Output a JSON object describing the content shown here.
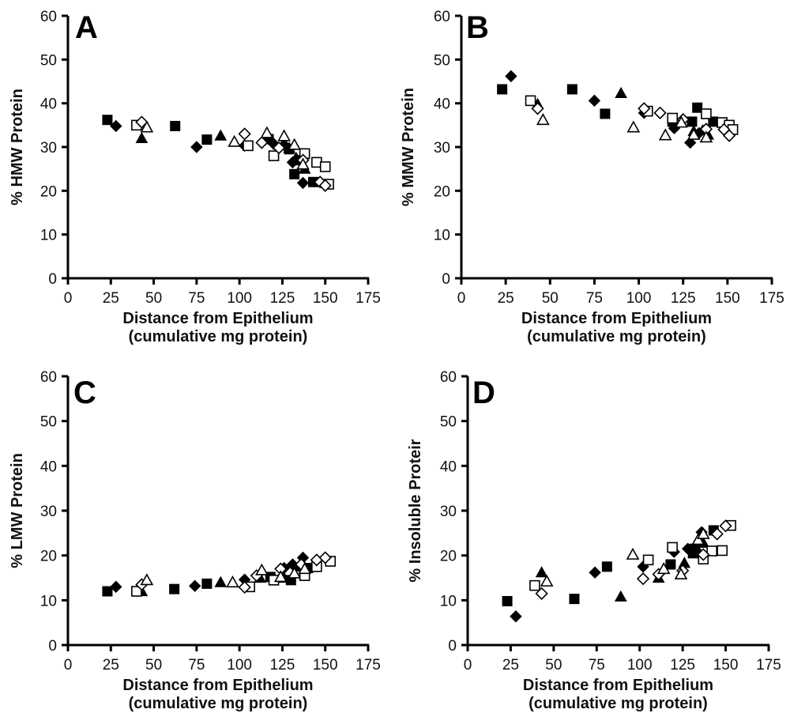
{
  "chart_data": [
    {
      "type": "scatter",
      "panel": "A",
      "title": "",
      "xlabel": "Distance from Epithelium",
      "xlabel_line2": "(cumulative mg protein)",
      "ylabel": "% HMW Protein",
      "xlim": [
        0,
        175
      ],
      "ylim": [
        0,
        60
      ],
      "xticks": [
        "0",
        "25",
        "50",
        "75",
        "100",
        "125",
        "150",
        "175"
      ],
      "yticks": [
        "0",
        "10",
        "20",
        "30",
        "40",
        "50",
        "60"
      ],
      "grid": false,
      "legend": "none",
      "series": [
        {
          "name": "filled-square",
          "marker": "square",
          "filled": true,
          "points": [
            [
              23,
              36.2
            ],
            [
              62.5,
              34.8
            ],
            [
              81,
              31.7
            ],
            [
              117,
              31.8
            ],
            [
              132,
              23.8
            ],
            [
              143,
              22.0
            ],
            [
              129,
              29.5
            ],
            [
              135,
              27.0
            ]
          ]
        },
        {
          "name": "filled-diamond",
          "marker": "diamond",
          "filled": true,
          "points": [
            [
              28,
              34.8
            ],
            [
              75,
              30.0
            ],
            [
              103,
              30.3
            ],
            [
              120,
              30.7
            ],
            [
              131,
              26.5
            ],
            [
              137,
              21.8
            ],
            [
              126,
              30.5
            ]
          ]
        },
        {
          "name": "filled-triangle",
          "marker": "triangle",
          "filled": true,
          "points": [
            [
              43,
              32.0
            ],
            [
              89,
              32.6
            ],
            [
              129,
              29.8
            ],
            [
              133,
              27.5
            ],
            [
              138,
              25.0
            ]
          ]
        },
        {
          "name": "open-square",
          "marker": "square",
          "filled": false,
          "points": [
            [
              40,
              35.0
            ],
            [
              105,
              30.3
            ],
            [
              120,
              28.0
            ],
            [
              138,
              28.5
            ],
            [
              145,
              26.5
            ],
            [
              150,
              25.5
            ],
            [
              152,
              21.5
            ]
          ]
        },
        {
          "name": "open-diamond",
          "marker": "diamond",
          "filled": false,
          "points": [
            [
              43,
              35.7
            ],
            [
              103,
              33.0
            ],
            [
              113,
              31.0
            ],
            [
              123,
              29.8
            ],
            [
              137,
              27.0
            ],
            [
              147,
              22.0
            ],
            [
              150,
              21.2
            ]
          ]
        },
        {
          "name": "open-triangle",
          "marker": "triangle",
          "filled": false,
          "points": [
            [
              46,
              34.5
            ],
            [
              97,
              31.2
            ],
            [
              116,
              33.2
            ],
            [
              126,
              32.5
            ],
            [
              132,
              30.5
            ],
            [
              137,
              26.0
            ]
          ]
        }
      ]
    },
    {
      "type": "scatter",
      "panel": "B",
      "title": "",
      "xlabel": "Distance from Epithelium",
      "xlabel_line2": "(cumulative mg protein)",
      "ylabel": "% MMW Protein",
      "xlim": [
        0,
        175
      ],
      "ylim": [
        0,
        60
      ],
      "xticks": [
        "0",
        "25",
        "50",
        "75",
        "100",
        "125",
        "150",
        "175"
      ],
      "yticks": [
        "0",
        "10",
        "20",
        "30",
        "40",
        "50",
        "60"
      ],
      "grid": false,
      "legend": "none",
      "series": [
        {
          "name": "filled-square",
          "marker": "square",
          "filled": true,
          "points": [
            [
              23,
              43.2
            ],
            [
              62.5,
              43.2
            ],
            [
              81,
              37.6
            ],
            [
              119,
              35.8
            ],
            [
              130,
              35.8
            ],
            [
              133,
              39.0
            ],
            [
              142,
              35.8
            ]
          ]
        },
        {
          "name": "filled-diamond",
          "marker": "diamond",
          "filled": true,
          "points": [
            [
              28,
              46.2
            ],
            [
              75,
              40.6
            ],
            [
              103,
              37.8
            ],
            [
              120,
              34.3
            ],
            [
              129,
              31.0
            ],
            [
              134,
              33.2
            ]
          ]
        },
        {
          "name": "filled-triangle",
          "marker": "triangle",
          "filled": true,
          "points": [
            [
              43,
              39.8
            ],
            [
              90,
              42.3
            ],
            [
              131,
              33.6
            ],
            [
              136,
              33.8
            ],
            [
              139,
              32.8
            ]
          ]
        },
        {
          "name": "open-square",
          "marker": "square",
          "filled": false,
          "points": [
            [
              39,
              40.6
            ],
            [
              105,
              38.2
            ],
            [
              119,
              36.6
            ],
            [
              138,
              37.6
            ],
            [
              147,
              35.6
            ],
            [
              151,
              35.0
            ],
            [
              153,
              34.0
            ]
          ]
        },
        {
          "name": "open-diamond",
          "marker": "diamond",
          "filled": false,
          "points": [
            [
              43,
              38.8
            ],
            [
              103,
              38.8
            ],
            [
              112,
              37.8
            ],
            [
              125,
              36.3
            ],
            [
              138,
              34.1
            ],
            [
              148,
              34.0
            ],
            [
              151,
              32.6
            ]
          ]
        },
        {
          "name": "open-triangle",
          "marker": "triangle",
          "filled": false,
          "points": [
            [
              46,
              36.2
            ],
            [
              97,
              34.5
            ],
            [
              115,
              32.7
            ],
            [
              124,
              35.6
            ],
            [
              131,
              32.8
            ],
            [
              138,
              32.2
            ]
          ]
        }
      ]
    },
    {
      "type": "scatter",
      "panel": "C",
      "title": "",
      "xlabel": "Distance from Epithelium",
      "xlabel_line2": "(cumulative mg protein)",
      "ylabel": "% LMW Protein",
      "xlim": [
        0,
        175
      ],
      "ylim": [
        0,
        60
      ],
      "xticks": [
        "0",
        "25",
        "50",
        "75",
        "100",
        "125",
        "150",
        "175"
      ],
      "yticks": [
        "0",
        "10",
        "20",
        "30",
        "40",
        "50",
        "60"
      ],
      "grid": false,
      "legend": "none",
      "series": [
        {
          "name": "filled-square",
          "marker": "square",
          "filled": true,
          "points": [
            [
              23,
              12.0
            ],
            [
              62,
              12.5
            ],
            [
              81,
              13.7
            ],
            [
              118,
              15.2
            ],
            [
              130,
              14.5
            ],
            [
              140,
              17.2
            ]
          ]
        },
        {
          "name": "filled-diamond",
          "marker": "diamond",
          "filled": true,
          "points": [
            [
              28,
              13.0
            ],
            [
              74,
              13.2
            ],
            [
              103,
              14.6
            ],
            [
              126,
              17.2
            ],
            [
              131,
              18.0
            ],
            [
              137,
              19.5
            ]
          ]
        },
        {
          "name": "filled-triangle",
          "marker": "triangle",
          "filled": true,
          "points": [
            [
              43,
              12.0
            ],
            [
              89,
              14.0
            ],
            [
              112,
              15.0
            ],
            [
              126,
              15.0
            ],
            [
              135,
              17.5
            ]
          ]
        },
        {
          "name": "open-square",
          "marker": "square",
          "filled": false,
          "points": [
            [
              40,
              12.0
            ],
            [
              106,
              13.0
            ],
            [
              120,
              14.5
            ],
            [
              138,
              15.5
            ],
            [
              145,
              17.5
            ],
            [
              153,
              18.7
            ]
          ]
        },
        {
          "name": "open-diamond",
          "marker": "diamond",
          "filled": false,
          "points": [
            [
              43,
              13.5
            ],
            [
              103,
              12.9
            ],
            [
              110,
              15.5
            ],
            [
              124,
              17.0
            ],
            [
              136,
              18.0
            ],
            [
              145,
              19.0
            ],
            [
              150,
              19.5
            ]
          ]
        },
        {
          "name": "open-triangle",
          "marker": "triangle",
          "filled": false,
          "points": [
            [
              46,
              14.5
            ],
            [
              96,
              14.0
            ],
            [
              113,
              16.7
            ],
            [
              124,
              15.2
            ],
            [
              132,
              16.0
            ],
            [
              138,
              17.0
            ]
          ]
        }
      ]
    },
    {
      "type": "scatter",
      "panel": "D",
      "title": "",
      "xlabel": "Distance from Epithelium",
      "xlabel_line2": "(cumulative mg protein)",
      "ylabel": "% Insoluble Proteir",
      "xlim": [
        0,
        175
      ],
      "ylim": [
        0,
        60
      ],
      "xticks": [
        "0",
        "25",
        "50",
        "75",
        "100",
        "125",
        "150",
        "175"
      ],
      "yticks": [
        "0",
        "10",
        "20",
        "30",
        "40",
        "50",
        "60"
      ],
      "grid": false,
      "legend": "none",
      "series": [
        {
          "name": "filled-square",
          "marker": "square",
          "filled": true,
          "points": [
            [
              23,
              9.8
            ],
            [
              62,
              10.3
            ],
            [
              81,
              17.5
            ],
            [
              118,
              18.0
            ],
            [
              132,
              21.5
            ],
            [
              143,
              25.6
            ],
            [
              131,
              20.5
            ]
          ]
        },
        {
          "name": "filled-diamond",
          "marker": "diamond",
          "filled": true,
          "points": [
            [
              28,
              6.4
            ],
            [
              74,
              16.2
            ],
            [
              102,
              17.5
            ],
            [
              128,
              21.5
            ],
            [
              136,
              25.2
            ],
            [
              120,
              20.8
            ]
          ]
        },
        {
          "name": "filled-triangle",
          "marker": "triangle",
          "filled": true,
          "points": [
            [
              43,
              16.2
            ],
            [
              89,
              10.8
            ],
            [
              111,
              15.0
            ],
            [
              126,
              18.3
            ],
            [
              137,
              22.8
            ],
            [
              133,
              21.8
            ]
          ]
        },
        {
          "name": "open-square",
          "marker": "square",
          "filled": false,
          "points": [
            [
              39,
              13.3
            ],
            [
              105,
              19.0
            ],
            [
              119,
              21.8
            ],
            [
              137,
              19.2
            ],
            [
              142,
              21.0
            ],
            [
              148,
              21.1
            ],
            [
              153,
              26.7
            ]
          ]
        },
        {
          "name": "open-diamond",
          "marker": "diamond",
          "filled": false,
          "points": [
            [
              43,
              11.5
            ],
            [
              102,
              14.8
            ],
            [
              111,
              15.8
            ],
            [
              125,
              16.6
            ],
            [
              137,
              20.2
            ],
            [
              145,
              24.8
            ],
            [
              150,
              26.6
            ]
          ]
        },
        {
          "name": "open-triangle",
          "marker": "triangle",
          "filled": false,
          "points": [
            [
              46,
              14.2
            ],
            [
              96,
              20.2
            ],
            [
              114,
              17.0
            ],
            [
              124,
              15.8
            ],
            [
              134,
              23.5
            ],
            [
              137,
              24.8
            ]
          ]
        }
      ]
    }
  ]
}
